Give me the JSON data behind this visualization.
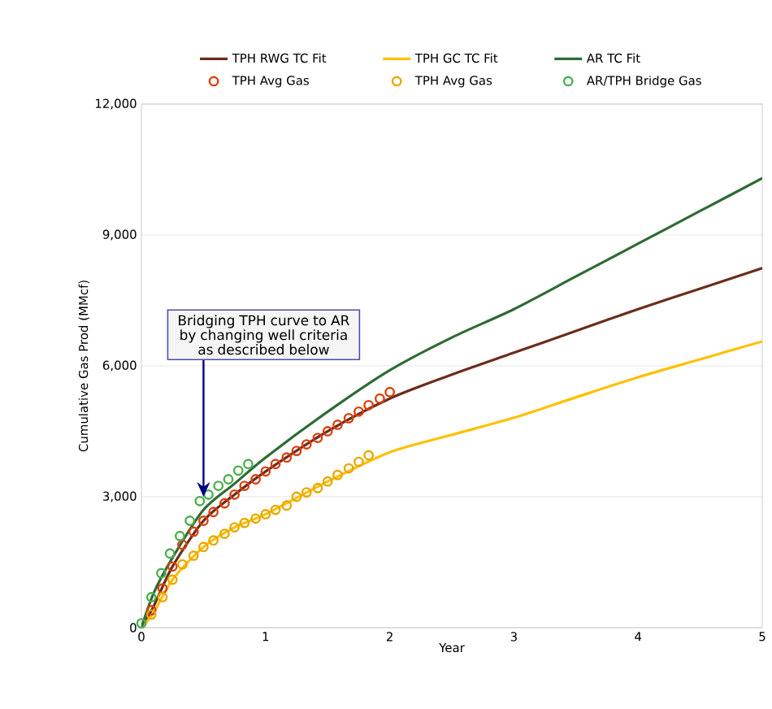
{
  "chart_data": {
    "type": "line",
    "xlabel": "Year",
    "ylabel": "Cumulative Gas Prod (MMcf)",
    "xlim": [
      0,
      5
    ],
    "xticks": [
      0,
      1,
      2,
      3,
      4,
      5
    ],
    "ylim": [
      0,
      12000
    ],
    "yticks": [
      0,
      {
        "value": 3000,
        "label": "3,000"
      },
      {
        "value": 6000,
        "label": "6,000"
      },
      {
        "value": 9000,
        "label": "9,000"
      },
      {
        "value": 12000,
        "label": "12,000"
      }
    ],
    "grid": "y",
    "legend": "top",
    "annotations": [
      {
        "text": "Bridging TPH curve to AR by changing well criteria as described below",
        "x": 0.5,
        "y": 3000
      }
    ],
    "series": [
      {
        "name": "TPH RWG TC Fit",
        "color": "#6b2c1a",
        "x": [
          0,
          0.1,
          0.25,
          0.5,
          0.75,
          1,
          1.5,
          2,
          2.5,
          3,
          3.5,
          4,
          4.5,
          5
        ],
        "values": [
          0,
          500,
          1400,
          2450,
          3050,
          3580,
          4500,
          5250,
          5800,
          6300,
          6800,
          7300,
          7770,
          8240
        ]
      },
      {
        "name": "TPH GC TC Fit",
        "color": "#ffc000",
        "x": [
          0,
          0.1,
          0.25,
          0.5,
          0.75,
          1,
          1.5,
          2,
          2.5,
          3,
          3.5,
          4,
          4.5,
          5
        ],
        "values": [
          0,
          350,
          1100,
          1850,
          2300,
          2600,
          3350,
          4020,
          4420,
          4810,
          5280,
          5740,
          6150,
          6560
        ]
      },
      {
        "name": "AR TC Fit",
        "color": "#2e6b34",
        "x": [
          0,
          0.1,
          0.25,
          0.5,
          0.75,
          1,
          1.5,
          2,
          2.5,
          3,
          3.5,
          4,
          4.5,
          5
        ],
        "values": [
          0,
          800,
          1600,
          2700,
          3300,
          3900,
          4950,
          5900,
          6650,
          7300,
          8050,
          8800,
          9550,
          10300
        ]
      },
      {
        "name": "TPH Avg Gas",
        "type": "scatter",
        "marker": "circle",
        "color": "#d9400f",
        "x": [
          0.08,
          0.17,
          0.25,
          0.33,
          0.42,
          0.5,
          0.58,
          0.67,
          0.75,
          0.83,
          0.92,
          1.0,
          1.08,
          1.17,
          1.25,
          1.33,
          1.42,
          1.5,
          1.58,
          1.67,
          1.75,
          1.83,
          1.92,
          2.0
        ],
        "values": [
          400,
          900,
          1400,
          1900,
          2200,
          2450,
          2650,
          2850,
          3050,
          3250,
          3400,
          3580,
          3750,
          3900,
          4050,
          4200,
          4350,
          4500,
          4650,
          4800,
          4950,
          5100,
          5250,
          5400
        ]
      },
      {
        "name": "TPH Avg Gas",
        "type": "scatter",
        "marker": "circle",
        "color": "#e6a800",
        "x": [
          0.08,
          0.17,
          0.25,
          0.33,
          0.42,
          0.5,
          0.58,
          0.67,
          0.75,
          0.83,
          0.92,
          1.0,
          1.08,
          1.17,
          1.25,
          1.33,
          1.42,
          1.5,
          1.58,
          1.67,
          1.75,
          1.83
        ],
        "values": [
          300,
          700,
          1100,
          1450,
          1650,
          1850,
          2000,
          2150,
          2300,
          2400,
          2500,
          2600,
          2700,
          2800,
          3000,
          3100,
          3200,
          3350,
          3500,
          3650,
          3800,
          3950
        ]
      },
      {
        "name": "AR/TPH Bridge Gas",
        "type": "scatter",
        "marker": "circle",
        "color": "#4caf50",
        "x": [
          0,
          0.08,
          0.16,
          0.23,
          0.31,
          0.39,
          0.47,
          0.54,
          0.62,
          0.7,
          0.78,
          0.86
        ],
        "values": [
          100,
          700,
          1250,
          1700,
          2100,
          2450,
          2900,
          3050,
          3250,
          3400,
          3600,
          3750
        ]
      }
    ]
  }
}
